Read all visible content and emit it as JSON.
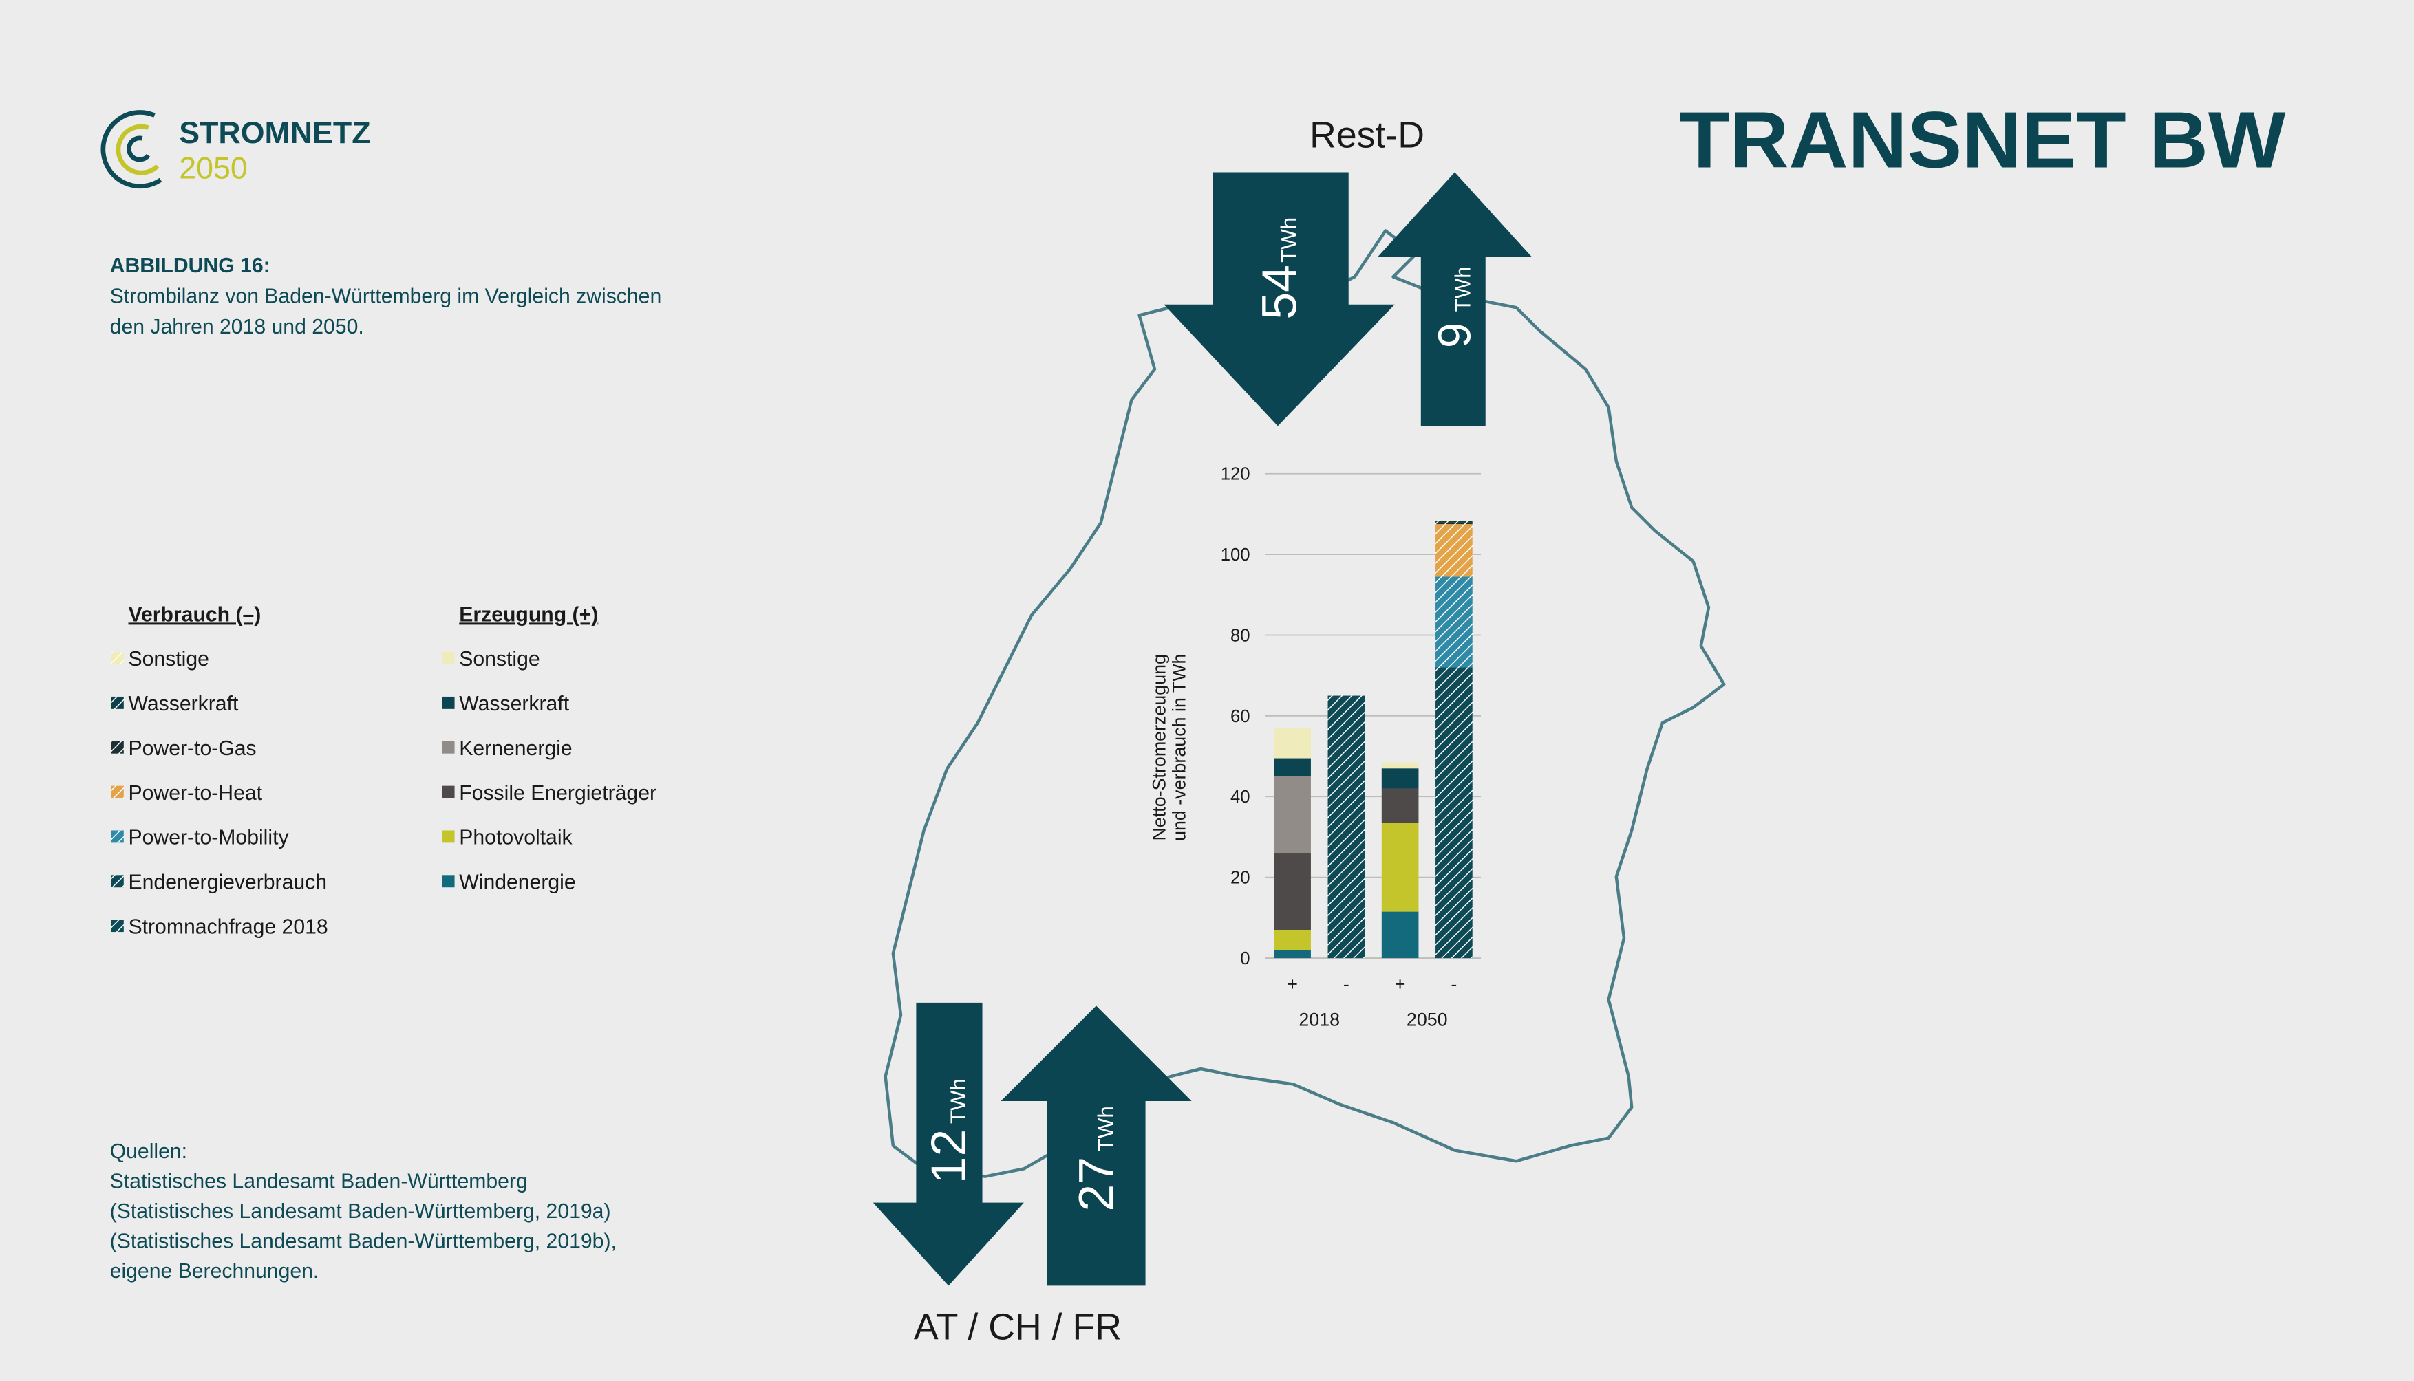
{
  "logo": {
    "name": "STROMNETZ",
    "year": "2050"
  },
  "brand": "TRANSNET BW",
  "caption": {
    "label": "ABBILDUNG 16:",
    "lines": [
      "Strombilanz von Baden-Württemberg im Vergleich zwischen",
      "den Jahren 2018 und 2050."
    ]
  },
  "sources": [
    "Quellen:",
    "Statistisches Landesamt Baden-Württemberg",
    "(Statistisches Landesamt Baden-Württemberg, 2019a)",
    "(Statistisches Landesamt Baden-Württemberg, 2019b),",
    "eigene Berechnungen."
  ],
  "flows": {
    "unit": "TWh",
    "regions": [
      {
        "name": "Rest-D",
        "import": 54,
        "export": 9
      },
      {
        "name": "AT / CH / FR",
        "import": 27,
        "export": 12
      }
    ]
  },
  "chart_data": {
    "type": "stacked_bar",
    "categories": [
      "+",
      "-",
      "+",
      "-"
    ],
    "x_groups": [
      "2018",
      "2050"
    ],
    "y_label": [
      "Netto-Stromerzeugung",
      "und -verbrauch in TWh"
    ],
    "ylim": [
      0,
      120
    ],
    "yticks": [
      0,
      20,
      40,
      60,
      80,
      100,
      120
    ],
    "grid": true,
    "legend_titles": [
      "Verbrauch (–)",
      "Erzeugung (+)"
    ],
    "series": [
      {
        "name": "Sonstige",
        "color": "#f1edb8",
        "pattern": "hatched",
        "values": [
          null,
          null,
          null,
          0.2
        ]
      },
      {
        "name": "Wasserkraft",
        "color": "#0c3f4a",
        "pattern": "hatched",
        "values": [
          null,
          null,
          null,
          0.3
        ]
      },
      {
        "name": "Power-to-Gas",
        "color": "#1d3035",
        "pattern": "hatched",
        "values": [
          null,
          null,
          null,
          0.5
        ]
      },
      {
        "name": "Power-to-Heat",
        "color": "#e3a449",
        "pattern": "hatched",
        "values": [
          null,
          null,
          null,
          13
        ]
      },
      {
        "name": "Power-to-Mobility",
        "color": "#2e8aa6",
        "pattern": "hatched",
        "values": [
          null,
          null,
          null,
          22.5
        ]
      },
      {
        "name": "Endenergieverbrauch",
        "color": "#0d4a55",
        "pattern": "hatched",
        "values": [
          null,
          null,
          null,
          72
        ]
      },
      {
        "name": "Stromnachfrage 2018",
        "color": "#0d4a55",
        "pattern": "hatched",
        "values": [
          null,
          65,
          null,
          null
        ]
      },
      {
        "name": "Sonstige",
        "color": "#efebbb",
        "pattern": "solid",
        "values": [
          7.5,
          null,
          1.5,
          null
        ]
      },
      {
        "name": "Wasserkraft",
        "color": "#0c4552",
        "pattern": "solid",
        "values": [
          4.5,
          null,
          5,
          null
        ]
      },
      {
        "name": "Kernenergie",
        "color": "#928c89",
        "pattern": "solid",
        "values": [
          19,
          null,
          null,
          null
        ]
      },
      {
        "name": "Fossile Energieträger",
        "color": "#4e4a4a",
        "pattern": "solid",
        "values": [
          19,
          null,
          8.5,
          null
        ]
      },
      {
        "name": "Photovoltaik",
        "color": "#c4c42b",
        "pattern": "solid",
        "values": [
          5,
          null,
          22,
          null
        ]
      },
      {
        "name": "Windenergie",
        "color": "#136a7d",
        "pattern": "solid",
        "values": [
          2,
          null,
          11.5,
          null
        ]
      }
    ]
  }
}
